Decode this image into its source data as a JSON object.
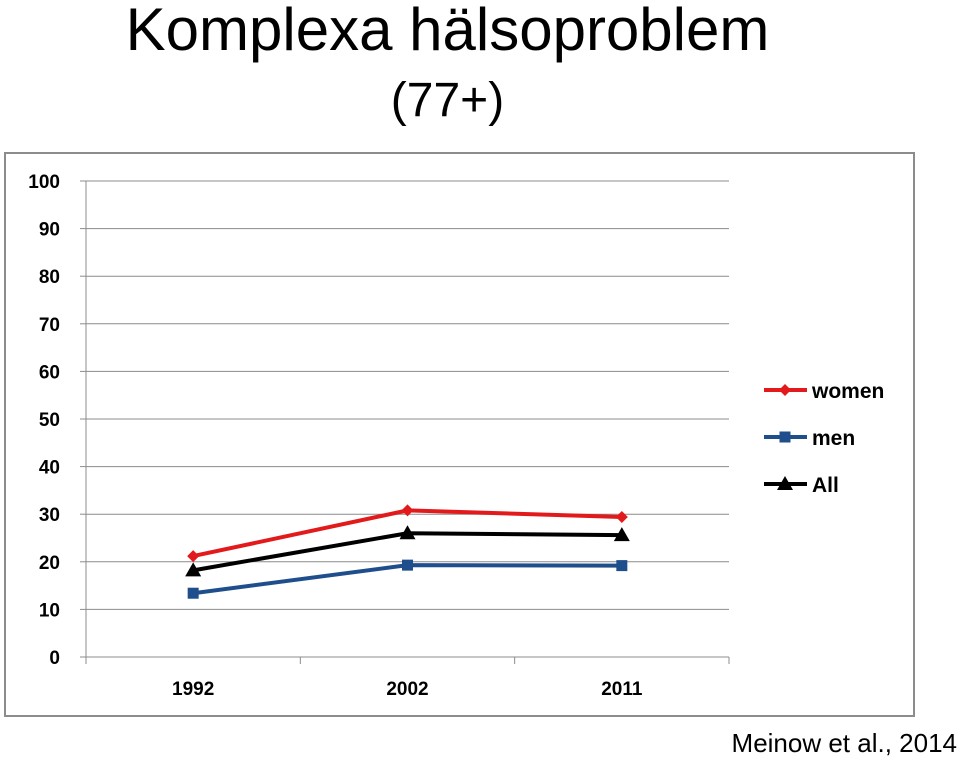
{
  "title": "Komplexa hälsoproblem",
  "subtitle": "(77+)",
  "citation": "Meinow et al., 2014",
  "chart_data": {
    "type": "line",
    "categories": [
      "1992",
      "2002",
      "2011"
    ],
    "ylim": [
      0,
      100
    ],
    "yticks": [
      0,
      10,
      20,
      30,
      40,
      50,
      60,
      70,
      80,
      90,
      100
    ],
    "grid": true,
    "legend_position": "right",
    "series": [
      {
        "name": "women",
        "values": [
          21.2,
          30.8,
          29.4
        ],
        "color": "#e31a1c",
        "marker": "diamond"
      },
      {
        "name": "men",
        "values": [
          13.4,
          19.3,
          19.2
        ],
        "color": "#1f4e8c",
        "marker": "square"
      },
      {
        "name": "All",
        "values": [
          18.2,
          26.0,
          25.6
        ],
        "color": "#000000",
        "marker": "triangle"
      }
    ]
  }
}
